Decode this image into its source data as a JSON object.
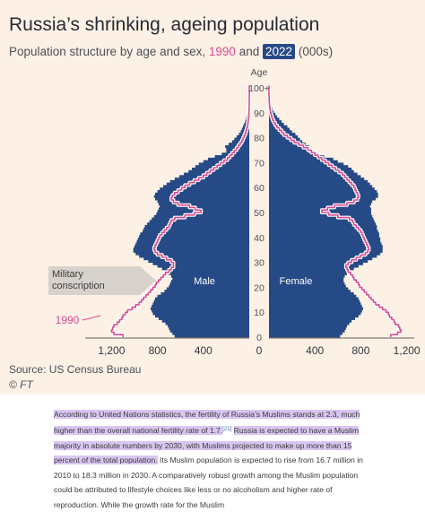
{
  "title": "Russia’s shrinking, ageing population",
  "subtitle": {
    "prefix": "Population structure by age and sex,",
    "y1990": "1990",
    "and": "and",
    "y2022": "2022",
    "suffix": "(000s)"
  },
  "source": "Source: US Census Bureau",
  "credit": "© FT",
  "annotation": {
    "line1": "Military",
    "line2": "conscription"
  },
  "colors": {
    "background": "#fdf1e5",
    "bars_2022": "#264a86",
    "outline_1990": "#d84c8e",
    "text": "#262a33",
    "highlight": "#d9c6f0"
  },
  "chart_data": {
    "type": "bar",
    "orientation": "horizontal population pyramid",
    "unit": "000s",
    "y_axis_label": "Age",
    "age_ticks": [
      "0",
      "10",
      "20",
      "30",
      "40",
      "50",
      "60",
      "70",
      "80",
      "90",
      "100+"
    ],
    "x_tick_labels": [
      "1,200",
      "800",
      "400",
      "0",
      "400",
      "800",
      "1,200"
    ],
    "xlim": [
      -1300,
      1300
    ],
    "ages": [
      0,
      1,
      2,
      3,
      4,
      5,
      6,
      7,
      8,
      9,
      10,
      11,
      12,
      13,
      14,
      15,
      16,
      17,
      18,
      19,
      20,
      21,
      22,
      23,
      24,
      25,
      26,
      27,
      28,
      29,
      30,
      31,
      32,
      33,
      34,
      35,
      36,
      37,
      38,
      39,
      40,
      41,
      42,
      43,
      44,
      45,
      46,
      47,
      48,
      49,
      50,
      51,
      52,
      53,
      54,
      55,
      56,
      57,
      58,
      59,
      60,
      61,
      62,
      63,
      64,
      65,
      66,
      67,
      68,
      69,
      70,
      71,
      72,
      73,
      74,
      75,
      76,
      77,
      78,
      79,
      80,
      81,
      82,
      83,
      84,
      85,
      86,
      87,
      88,
      89,
      90,
      91,
      92,
      93,
      94,
      95,
      96,
      97,
      98,
      99,
      100
    ],
    "series": [
      {
        "name": "Male",
        "year": "2022",
        "values": [
          650,
          670,
          690,
          700,
          710,
          730,
          760,
          790,
          820,
          840,
          850,
          860,
          850,
          840,
          830,
          820,
          800,
          770,
          740,
          720,
          700,
          690,
          680,
          670,
          680,
          700,
          720,
          760,
          800,
          840,
          880,
          920,
          960,
          990,
          1010,
          1010,
          1000,
          990,
          980,
          970,
          960,
          950,
          930,
          920,
          910,
          890,
          870,
          850,
          830,
          810,
          800,
          790,
          780,
          790,
          800,
          820,
          830,
          820,
          800,
          780,
          750,
          720,
          690,
          650,
          610,
          570,
          530,
          500,
          470,
          440,
          400,
          360,
          300,
          240,
          200,
          200,
          210,
          180,
          150,
          130,
          110,
          90,
          75,
          65,
          55,
          45,
          35,
          28,
          22,
          16,
          12,
          9,
          6,
          4,
          3,
          2,
          1,
          1,
          1,
          0,
          0
        ]
      },
      {
        "name": "Female",
        "year": "2022",
        "values": [
          620,
          640,
          660,
          670,
          680,
          700,
          720,
          750,
          780,
          800,
          810,
          820,
          810,
          800,
          790,
          780,
          760,
          740,
          710,
          690,
          670,
          660,
          650,
          650,
          660,
          680,
          700,
          740,
          780,
          820,
          860,
          900,
          940,
          970,
          990,
          990,
          990,
          980,
          970,
          970,
          960,
          960,
          950,
          940,
          940,
          930,
          920,
          910,
          900,
          890,
          890,
          890,
          880,
          890,
          900,
          930,
          950,
          950,
          940,
          920,
          900,
          880,
          860,
          830,
          800,
          770,
          740,
          720,
          690,
          650,
          600,
          560,
          480,
          400,
          340,
          330,
          350,
          320,
          290,
          270,
          250,
          230,
          200,
          180,
          160,
          130,
          110,
          90,
          70,
          55,
          40,
          30,
          22,
          15,
          10,
          7,
          4,
          2,
          2,
          1,
          1
        ]
      },
      {
        "name": "1990 male",
        "year": "1990",
        "values": [
          1100,
          1180,
          1200,
          1190,
          1180,
          1150,
          1130,
          1110,
          1100,
          1080,
          1060,
          1020,
          990,
          960,
          940,
          920,
          900,
          880,
          860,
          840,
          820,
          810,
          790,
          770,
          750,
          730,
          700,
          680,
          660,
          660,
          680,
          720,
          760,
          800,
          820,
          830,
          820,
          810,
          800,
          790,
          780,
          760,
          740,
          720,
          700,
          690,
          680,
          650,
          560,
          480,
          420,
          470,
          520,
          620,
          660,
          680,
          670,
          650,
          620,
          590,
          560,
          520,
          480,
          440,
          400,
          370,
          340,
          310,
          280,
          250,
          220,
          190,
          170,
          150,
          130,
          110,
          95,
          80,
          65,
          55,
          45,
          35,
          28,
          22,
          16,
          12,
          9,
          6,
          4,
          3,
          2,
          1,
          1,
          0,
          0,
          0,
          0,
          0,
          0,
          0,
          0
        ]
      },
      {
        "name": "1990 female",
        "year": "1990",
        "values": [
          1060,
          1120,
          1150,
          1140,
          1130,
          1100,
          1090,
          1070,
          1050,
          1040,
          1020,
          990,
          960,
          930,
          910,
          890,
          870,
          850,
          830,
          810,
          790,
          780,
          760,
          740,
          730,
          710,
          690,
          680,
          670,
          690,
          720,
          760,
          800,
          840,
          860,
          870,
          860,
          850,
          840,
          830,
          820,
          810,
          800,
          780,
          760,
          740,
          730,
          700,
          600,
          520,
          460,
          510,
          570,
          680,
          740,
          770,
          780,
          770,
          760,
          750,
          740,
          720,
          700,
          680,
          660,
          640,
          610,
          580,
          550,
          520,
          490,
          460,
          430,
          400,
          370,
          340,
          300,
          260,
          220,
          190,
          160,
          130,
          110,
          90,
          70,
          55,
          42,
          32,
          24,
          18,
          13,
          9,
          6,
          4,
          2,
          1,
          1,
          0,
          0,
          0,
          0
        ]
      }
    ],
    "labels_on_chart": {
      "male": "Male",
      "female": "Female",
      "year_1990": "1990"
    }
  },
  "article": {
    "p1": "According to United Nations statistics, the fertility of Russia’s Muslims stands at 2.3, much higher than the overall national fertility rate of 1.7.",
    "ref": "[21]",
    "p2": "Russia is expected to have a Muslim majority in absolute numbers by 2030, with Muslims projected to make up more than 15 percent of the total population.",
    "p3": "Its Muslim population is expected to rise from 16.7 million in 2010 to 18.3 million in 2030. A comparatively robust growth among the Muslim population could be attributed to lifestyle choices like less or no alcoholism and higher rate of reproduction. While the growth rate for the Muslim"
  }
}
